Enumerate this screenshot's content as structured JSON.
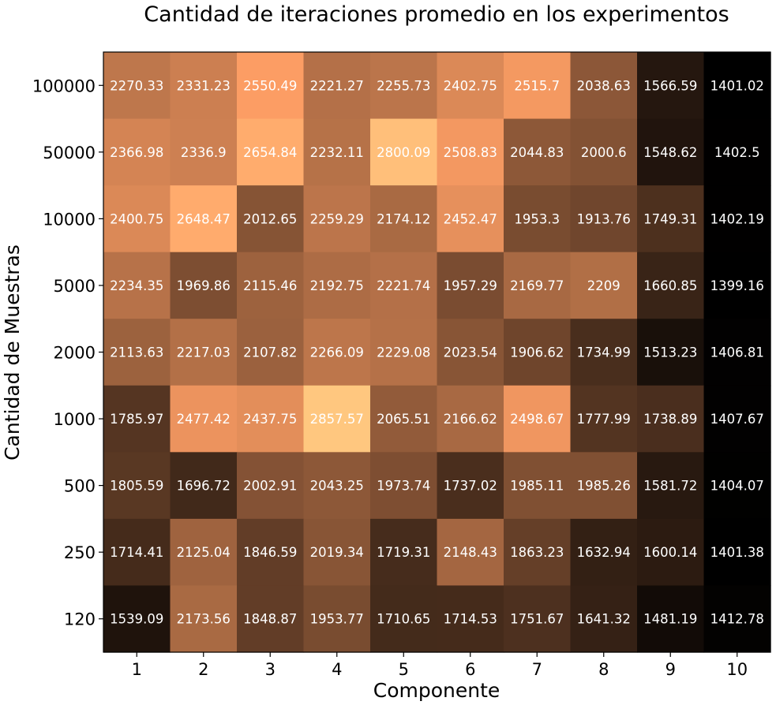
{
  "chart_data": {
    "type": "heatmap",
    "title": "Cantidad de iteraciones promedio en los experimentos",
    "xlabel": "Componente",
    "ylabel": "Cantidad de Muestras",
    "x_categories": [
      "1",
      "2",
      "3",
      "4",
      "5",
      "6",
      "7",
      "8",
      "9",
      "10"
    ],
    "y_categories": [
      "100000",
      "50000",
      "10000",
      "5000",
      "2000",
      "1000",
      "500",
      "250",
      "120"
    ],
    "colormap": "copper",
    "value_range": [
      1399.16,
      2857.57
    ],
    "grid": false,
    "values": [
      [
        2270.33,
        2331.23,
        2550.49,
        2221.27,
        2255.73,
        2402.75,
        2515.7,
        2038.63,
        1566.59,
        1401.02
      ],
      [
        2366.98,
        2336.9,
        2654.84,
        2232.11,
        2800.09,
        2508.83,
        2044.83,
        2000.6,
        1548.62,
        1402.5
      ],
      [
        2400.75,
        2648.47,
        2012.65,
        2259.29,
        2174.12,
        2452.47,
        1953.3,
        1913.76,
        1749.31,
        1402.19
      ],
      [
        2234.35,
        1969.86,
        2115.46,
        2192.75,
        2221.74,
        1957.29,
        2169.77,
        2209.0,
        1660.85,
        1399.16
      ],
      [
        2113.63,
        2217.03,
        2107.82,
        2266.09,
        2229.08,
        2023.54,
        1906.62,
        1734.99,
        1513.23,
        1406.81
      ],
      [
        1785.97,
        2477.42,
        2437.75,
        2857.57,
        2065.51,
        2166.62,
        2498.67,
        1777.99,
        1738.89,
        1407.67
      ],
      [
        1805.59,
        1696.72,
        2002.91,
        2043.25,
        1973.74,
        1737.02,
        1985.11,
        1985.26,
        1581.72,
        1404.07
      ],
      [
        1714.41,
        2125.04,
        1846.59,
        2019.34,
        1719.31,
        2148.43,
        1863.23,
        1632.94,
        1600.14,
        1401.38
      ],
      [
        1539.09,
        2173.56,
        1848.87,
        1953.77,
        1710.65,
        1714.53,
        1751.67,
        1641.32,
        1481.19,
        1412.78
      ]
    ]
  }
}
